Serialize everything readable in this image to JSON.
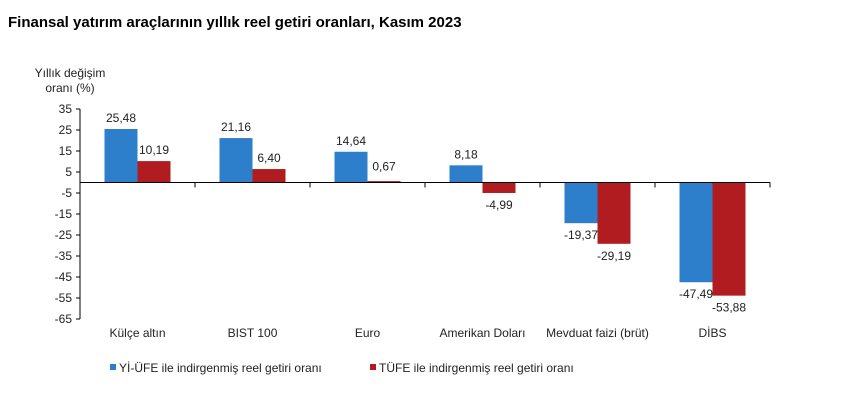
{
  "chart_data": {
    "type": "bar",
    "title": "Finansal yatırım araçlarının yıllık reel getiri oranları, Kasım 2023",
    "ylabel": [
      "Yıllık değişim",
      "oranı (%)"
    ],
    "ylim": [
      -65,
      35
    ],
    "yticks": [
      35,
      25,
      15,
      5,
      -5,
      -15,
      -25,
      -35,
      -45,
      -55,
      -65
    ],
    "categories": [
      "Külçe altın",
      "BIST 100",
      "Euro",
      "Amerikan Doları",
      "Mevduat faizi (brüt)",
      "DİBS"
    ],
    "series": [
      {
        "name": "Yİ-ÜFE ile indirgenmiş reel getiri oranı",
        "color": "#2e7fcb",
        "values": [
          25.48,
          21.16,
          14.64,
          8.18,
          -19.37,
          -47.49
        ],
        "labels": [
          "25,48",
          "21,16",
          "14,64",
          "8,18",
          "-19,37",
          "-47,49"
        ]
      },
      {
        "name": "TÜFE ile indirgenmiş reel getiri oranı",
        "color": "#b01c1f",
        "values": [
          10.19,
          6.4,
          0.67,
          -4.99,
          -29.19,
          -53.88
        ],
        "labels": [
          "10,19",
          "6,40",
          "0,67",
          "-4,99",
          "-29,19",
          "-53,88"
        ]
      }
    ],
    "legend_position": "bottom",
    "grid": false
  }
}
